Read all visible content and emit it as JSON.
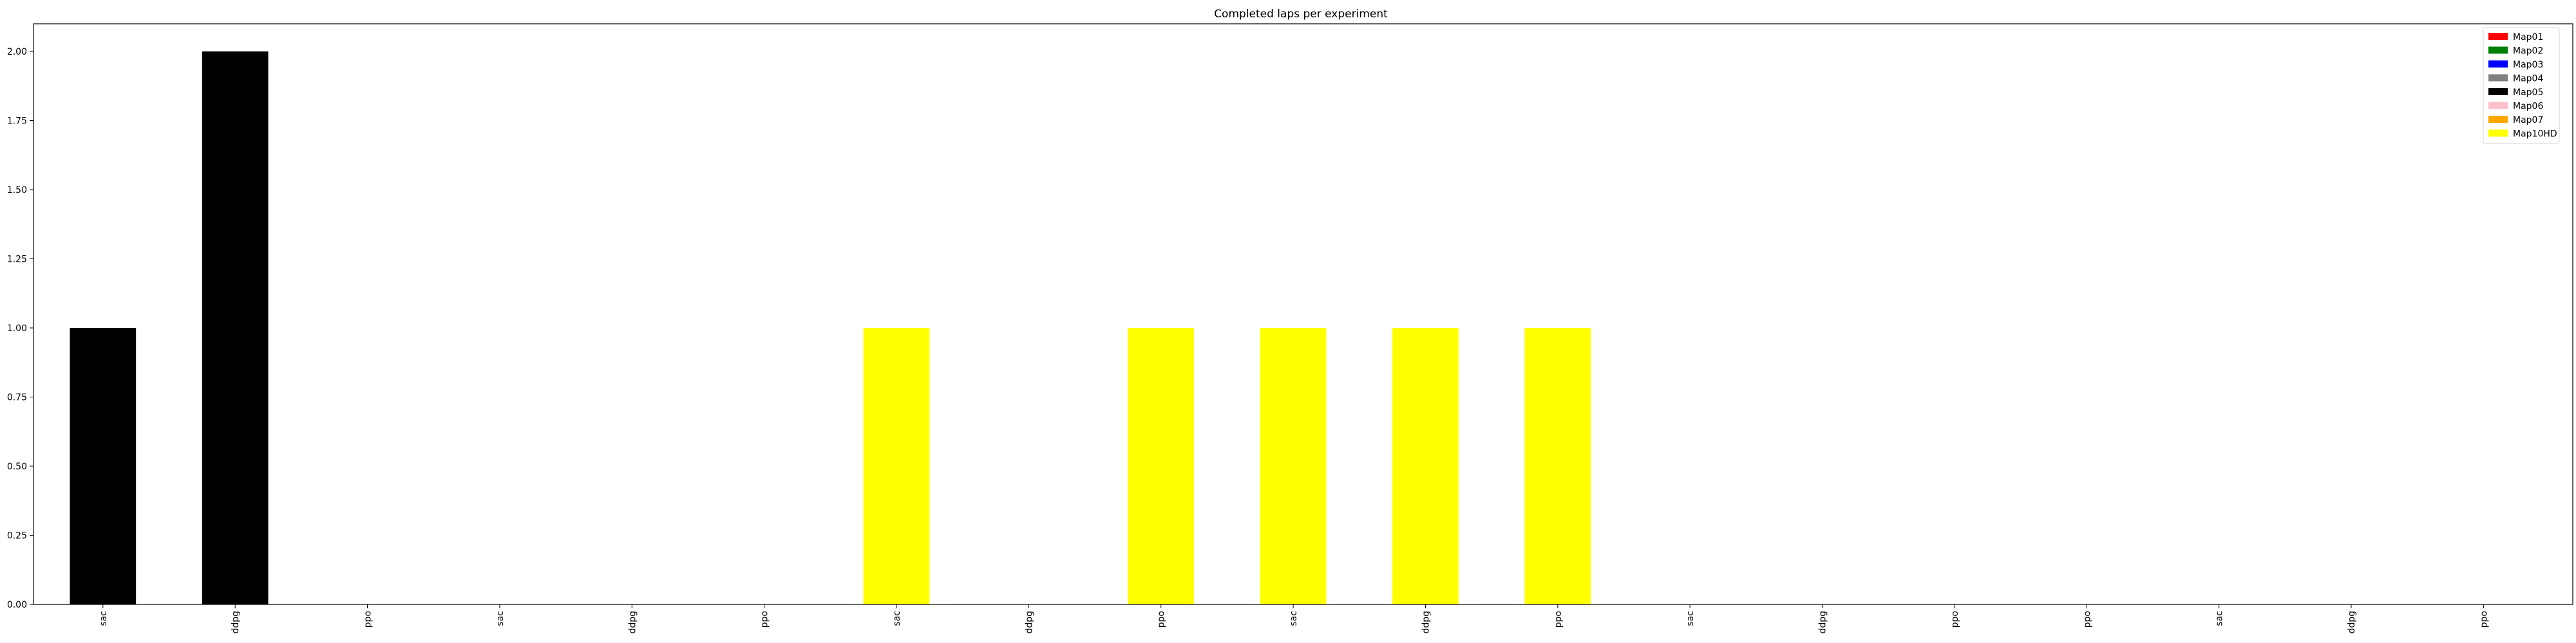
{
  "chart_data": {
    "type": "bar",
    "title": "Completed laps per experiment",
    "xlabel": "",
    "ylabel": "",
    "ylim": [
      0,
      2.1
    ],
    "yticks": [
      "0.00",
      "0.25",
      "0.50",
      "0.75",
      "1.00",
      "1.25",
      "1.50",
      "1.75",
      "2.00"
    ],
    "ytick_values": [
      0,
      0.25,
      0.5,
      0.75,
      1.0,
      1.25,
      1.5,
      1.75,
      2.0
    ],
    "grid": false,
    "legend_position": "top-right",
    "categories": [
      "sac",
      "ddpg",
      "ppo",
      "sac",
      "ddpg",
      "ppo",
      "sac",
      "ddpg",
      "ppo",
      "sac",
      "ddpg",
      "ppo",
      "sac",
      "ddpg",
      "ppo",
      "ppo",
      "sac",
      "ddpg",
      "ppo"
    ],
    "values": [
      1,
      2,
      0,
      0,
      0,
      0,
      1,
      0,
      1,
      1,
      1,
      1,
      0,
      0,
      0,
      0,
      0,
      0,
      0
    ],
    "bar_maps": [
      "Map05",
      "Map05",
      "",
      "",
      "",
      "",
      "Map10HD",
      "",
      "Map10HD",
      "Map10HD",
      "Map10HD",
      "Map10HD",
      "",
      "",
      "",
      "",
      "",
      "",
      ""
    ],
    "legend": [
      {
        "name": "Map01",
        "color": "#ff0000"
      },
      {
        "name": "Map02",
        "color": "#008000"
      },
      {
        "name": "Map03",
        "color": "#0000ff"
      },
      {
        "name": "Map04",
        "color": "#808080"
      },
      {
        "name": "Map05",
        "color": "#000000"
      },
      {
        "name": "Map06",
        "color": "#ffc0cb"
      },
      {
        "name": "Map07",
        "color": "#ffa500"
      },
      {
        "name": "Map10HD",
        "color": "#ffff00"
      }
    ]
  }
}
